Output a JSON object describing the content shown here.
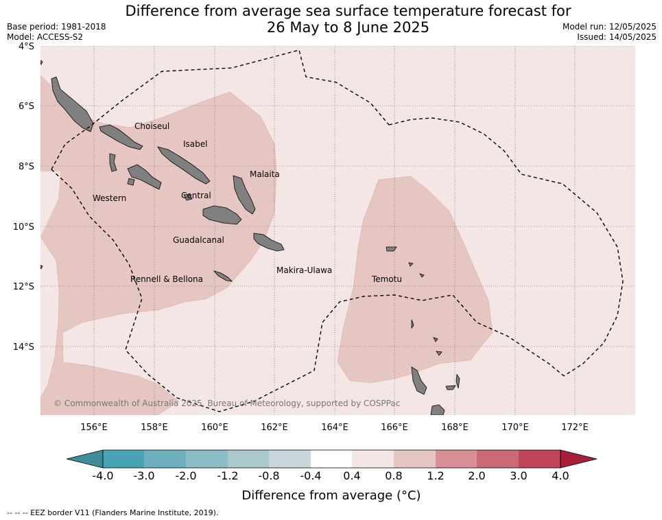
{
  "header": {
    "title_line1": "Difference from average sea surface temperature forecast for",
    "title_line2": "26 May to 8 June 2025",
    "base_period": "Base period: 1981-2018",
    "model": "Model: ACCESS-S2",
    "model_run": "Model run: 12/05/2025",
    "issued": "Issued: 14/05/2025"
  },
  "map": {
    "y_ticks": [
      "4°S",
      "6°S",
      "8°S",
      "10°S",
      "12°S",
      "14°S"
    ],
    "x_ticks": [
      "156°E",
      "158°E",
      "160°E",
      "162°E",
      "164°E",
      "166°E",
      "168°E",
      "170°E",
      "172°E"
    ],
    "province_labels": [
      "Choiseul",
      "Isabel",
      "Malaita",
      "Western",
      "Central",
      "Guadalcanal",
      "Makira-Ulawa",
      "Rennell & Bellona",
      "Temotu"
    ],
    "copyright": "© Commonwealth of Australia 2025, Bureau of Meteorology, supported by COSPPac",
    "colors": {
      "land": "#808080",
      "band_0_4_to_0_8": "#f4e6e5",
      "band_0_8_to_1_2": "#e6c6c3",
      "eez_line": "#000000"
    }
  },
  "colorbar": {
    "label": "Difference from average (°C)",
    "ticks": [
      "-4.0",
      "-3.0",
      "-2.0",
      "-1.2",
      "-0.8",
      "-0.4",
      "0.4",
      "0.8",
      "1.2",
      "2.0",
      "3.0",
      "4.0"
    ],
    "colors": [
      "#3d8c97",
      "#4aa3b4",
      "#6fb0be",
      "#8cbcc6",
      "#a9c9cd",
      "#c8d7db",
      "#ffffff",
      "#f4e6e5",
      "#e6c6c3",
      "#d88f96",
      "#c96a75",
      "#be4656",
      "#ab1e3a"
    ]
  },
  "footer": {
    "legend_note": "--  --  -- EEZ border V11 (Flanders Marine Institute, 2019)."
  }
}
